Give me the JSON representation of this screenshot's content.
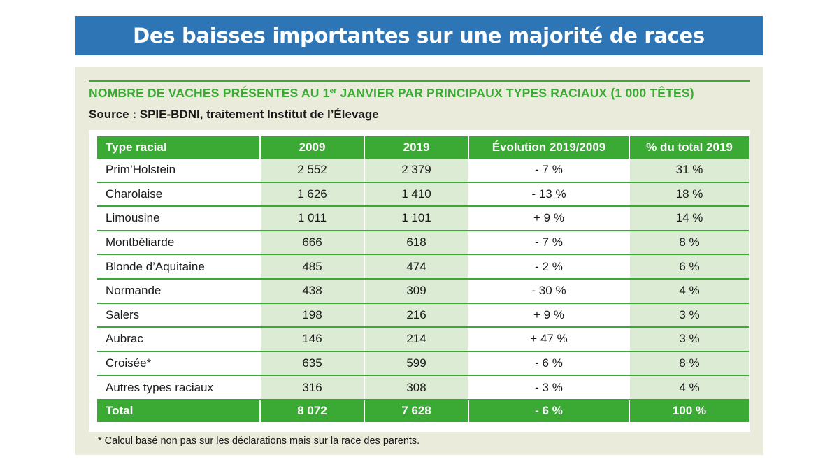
{
  "title": "Des baisses importantes sur une majorité de races",
  "subtitle_before": "NOMBRE DE VACHES PRÉSENTES AU 1",
  "subtitle_sup": "er",
  "subtitle_after": " JANVIER PAR PRINCIPAUX TYPES RACIAUX (1 000 TÊTES)",
  "source": "Source : SPIE-BDNI, traitement Institut de l’Élevage",
  "table": {
    "headers": [
      "Type racial",
      "2009",
      "2019",
      "Évolution 2019/2009",
      "% du total 2019"
    ],
    "rows": [
      [
        "Prim’Holstein",
        "2 552",
        "2 379",
        "- 7 %",
        "31 %"
      ],
      [
        "Charolaise",
        "1 626",
        "1 410",
        "- 13 %",
        "18 %"
      ],
      [
        "Limousine",
        "1 011",
        "1 101",
        "+ 9 %",
        "14 %"
      ],
      [
        "Montbéliarde",
        "666",
        "618",
        "- 7 %",
        "8 %"
      ],
      [
        "Blonde d’Aquitaine",
        "485",
        "474",
        "- 2 %",
        "6 %"
      ],
      [
        "Normande",
        "438",
        "309",
        "- 30 %",
        "4 %"
      ],
      [
        "Salers",
        "198",
        "216",
        "+ 9 %",
        "3 %"
      ],
      [
        "Aubrac",
        "146",
        "214",
        "+ 47 %",
        "3 %"
      ],
      [
        "Croisée*",
        "635",
        "599",
        "- 6 %",
        "8 %"
      ],
      [
        "Autres types raciaux",
        "316",
        "308",
        "- 3 %",
        "4 %"
      ]
    ],
    "total": [
      "Total",
      "8 072",
      "7 628",
      "- 6 %",
      "100 %"
    ]
  },
  "footnote": "* Calcul basé non pas sur les déclarations mais sur la race des parents."
}
